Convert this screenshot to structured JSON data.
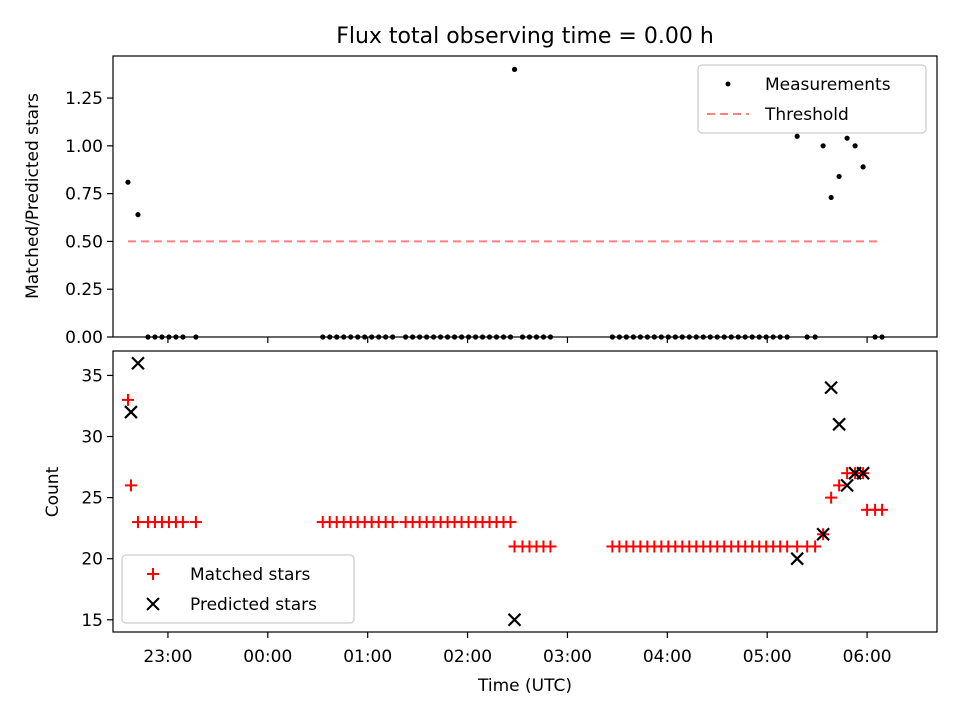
{
  "chart_data": [
    {
      "type": "scatter",
      "title": "Flux total observing time = 0.00 h",
      "ylabel": "Matched/Predicted stars",
      "xlabel": "",
      "xlim": [
        -1.55,
        6.7
      ],
      "ylim": [
        0,
        1.47
      ],
      "yticks": [
        0,
        0.25,
        0.5,
        0.75,
        1.0,
        1.25
      ],
      "ytick_labels": [
        "0.00",
        "0.25",
        "0.50",
        "0.75",
        "1.00",
        "1.25"
      ],
      "legend": {
        "position": "top-right",
        "entries": [
          "Measurements",
          "Threshold"
        ]
      },
      "threshold": {
        "name": "Threshold",
        "x": [
          -1.4,
          6.15
        ],
        "y": 0.5,
        "color": "#ff7f7f"
      },
      "series": [
        {
          "name": "Measurements",
          "color": "#000000",
          "x": [
            -1.4,
            -1.3,
            -1.2,
            -1.13,
            -1.06,
            -0.99,
            -0.92,
            -0.85,
            -0.72,
            0.55,
            0.62,
            0.69,
            0.76,
            0.83,
            0.9,
            0.97,
            1.04,
            1.11,
            1.18,
            1.25,
            1.38,
            1.45,
            1.52,
            1.59,
            1.66,
            1.73,
            1.8,
            1.87,
            1.94,
            2.01,
            2.08,
            2.15,
            2.22,
            2.29,
            2.36,
            2.43,
            2.47,
            2.55,
            2.62,
            2.69,
            2.76,
            2.83,
            3.45,
            3.52,
            3.59,
            3.66,
            3.73,
            3.8,
            3.87,
            3.94,
            4.01,
            4.08,
            4.15,
            4.22,
            4.29,
            4.36,
            4.43,
            4.5,
            4.57,
            4.64,
            4.71,
            4.78,
            4.85,
            4.92,
            4.99,
            5.06,
            5.13,
            5.2,
            5.3,
            5.4,
            5.48,
            5.56,
            5.64,
            5.72,
            5.8,
            5.88,
            5.96,
            6.08,
            6.15
          ],
          "y": [
            0.81,
            0.64,
            0,
            0,
            0,
            0,
            0,
            0,
            0,
            0,
            0,
            0,
            0,
            0,
            0,
            0,
            0,
            0,
            0,
            0,
            0,
            0,
            0,
            0,
            0,
            0,
            0,
            0,
            0,
            0,
            0,
            0,
            0,
            0,
            0,
            0,
            1.4,
            0,
            0,
            0,
            0,
            0,
            0,
            0,
            0,
            0,
            0,
            0,
            0,
            0,
            0,
            0,
            0,
            0,
            0,
            0,
            0,
            0,
            0,
            0,
            0,
            0,
            0,
            0,
            0,
            0,
            0,
            0,
            1.05,
            0,
            0,
            1.0,
            0.73,
            0.84,
            1.04,
            1.0,
            0.89,
            0,
            0
          ]
        }
      ]
    },
    {
      "type": "scatter",
      "title": "",
      "ylabel": "Count",
      "xlabel": "Time (UTC)",
      "xlim": [
        -1.55,
        6.7
      ],
      "ylim": [
        14.0,
        37.0
      ],
      "yticks": [
        15,
        20,
        25,
        30,
        35
      ],
      "ytick_labels": [
        "15",
        "20",
        "25",
        "30",
        "35"
      ],
      "xticks": [
        -1,
        0,
        1,
        2,
        3,
        4,
        5,
        6
      ],
      "xtick_labels": [
        "23:00",
        "00:00",
        "01:00",
        "02:00",
        "03:00",
        "04:00",
        "05:00",
        "06:00"
      ],
      "legend": {
        "position": "lower-left",
        "entries": [
          "Matched stars",
          "Predicted stars"
        ]
      },
      "series": [
        {
          "name": "Matched stars",
          "marker": "plus",
          "color": "#ff0000",
          "x": [
            -1.4,
            -1.37,
            -1.3,
            -1.2,
            -1.13,
            -1.06,
            -0.99,
            -0.92,
            -0.85,
            -0.72,
            0.55,
            0.62,
            0.69,
            0.76,
            0.83,
            0.9,
            0.97,
            1.04,
            1.11,
            1.18,
            1.25,
            1.38,
            1.45,
            1.52,
            1.59,
            1.66,
            1.73,
            1.8,
            1.87,
            1.94,
            2.01,
            2.08,
            2.15,
            2.22,
            2.29,
            2.36,
            2.43,
            2.47,
            2.55,
            2.62,
            2.69,
            2.76,
            2.83,
            3.45,
            3.52,
            3.59,
            3.66,
            3.73,
            3.8,
            3.87,
            3.94,
            4.01,
            4.08,
            4.15,
            4.22,
            4.29,
            4.36,
            4.43,
            4.5,
            4.57,
            4.64,
            4.71,
            4.78,
            4.85,
            4.92,
            4.99,
            5.06,
            5.13,
            5.2,
            5.3,
            5.4,
            5.48,
            5.56,
            5.64,
            5.72,
            5.8,
            5.88,
            5.96,
            6.0,
            6.08,
            6.15
          ],
          "y": [
            33,
            26,
            23,
            23,
            23,
            23,
            23,
            23,
            23,
            23,
            23,
            23,
            23,
            23,
            23,
            23,
            23,
            23,
            23,
            23,
            23,
            23,
            23,
            23,
            23,
            23,
            23,
            23,
            23,
            23,
            23,
            23,
            23,
            23,
            23,
            23,
            23,
            21,
            21,
            21,
            21,
            21,
            21,
            21,
            21,
            21,
            21,
            21,
            21,
            21,
            21,
            21,
            21,
            21,
            21,
            21,
            21,
            21,
            21,
            21,
            21,
            21,
            21,
            21,
            21,
            21,
            21,
            21,
            21,
            21,
            21,
            21,
            22,
            25,
            26,
            27,
            27,
            27,
            24,
            24,
            24
          ]
        },
        {
          "name": "Predicted stars",
          "marker": "x",
          "color": "#000000",
          "x": [
            -1.37,
            -1.3,
            2.47,
            5.3,
            5.56,
            5.64,
            5.72,
            5.8,
            5.88,
            5.96
          ],
          "y": [
            32,
            36,
            15,
            20,
            22,
            34,
            31,
            26,
            27,
            27
          ]
        }
      ]
    }
  ]
}
